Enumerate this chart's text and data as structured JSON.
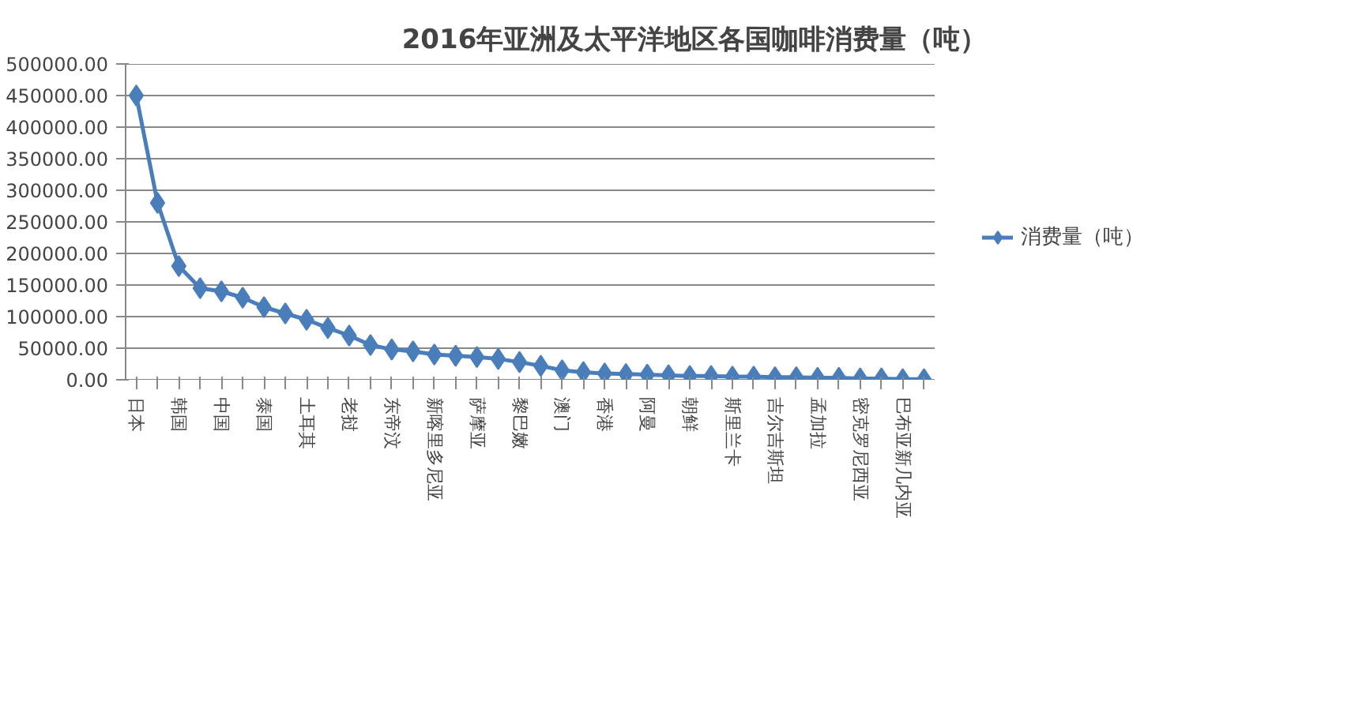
{
  "chart_data": {
    "type": "line",
    "title": "2016年亚洲及太平洋地区各国咖啡消费量（吨）",
    "categories": [
      "日本",
      null,
      "韩国",
      null,
      "中国",
      null,
      "泰国",
      null,
      "土耳其",
      null,
      "老挝",
      null,
      "东帝汶",
      null,
      "新喀里多尼亚",
      null,
      "萨摩亚",
      null,
      "黎巴嫩",
      null,
      "澳门",
      null,
      "香港",
      null,
      "阿曼",
      null,
      "朝鲜",
      null,
      "斯里兰卡",
      null,
      "吉尔吉斯坦",
      null,
      "孟加拉",
      null,
      "密克罗尼西亚",
      null,
      "巴布亚新几内亚",
      null
    ],
    "series": [
      {
        "name": "消费量（吨）",
        "color": "#4a7ebb",
        "values": [
          450000,
          280000,
          180000,
          145000,
          140000,
          130000,
          115000,
          105000,
          95000,
          82000,
          70000,
          55000,
          48000,
          45000,
          40000,
          38000,
          36000,
          33000,
          28000,
          22000,
          15000,
          12000,
          10000,
          9000,
          8000,
          7000,
          6000,
          6000,
          5000,
          5000,
          4000,
          4000,
          3000,
          3000,
          2000,
          2000,
          1000,
          1000
        ]
      }
    ],
    "ylim": [
      0,
      500000
    ],
    "yticks": [
      {
        "value": 0,
        "label": "0.00"
      },
      {
        "value": 50000,
        "label": "50000.00"
      },
      {
        "value": 100000,
        "label": "100000.00"
      },
      {
        "value": 150000,
        "label": "150000.00"
      },
      {
        "value": 200000,
        "label": "200000.00"
      },
      {
        "value": 250000,
        "label": "250000.00"
      },
      {
        "value": 300000,
        "label": "300000.00"
      },
      {
        "value": 350000,
        "label": "350000.00"
      },
      {
        "value": 400000,
        "label": "400000.00"
      },
      {
        "value": 450000,
        "label": "450000.00"
      },
      {
        "value": 500000,
        "label": "500000.00"
      }
    ],
    "grid": "y",
    "legend": "right",
    "marker": "diamond"
  }
}
